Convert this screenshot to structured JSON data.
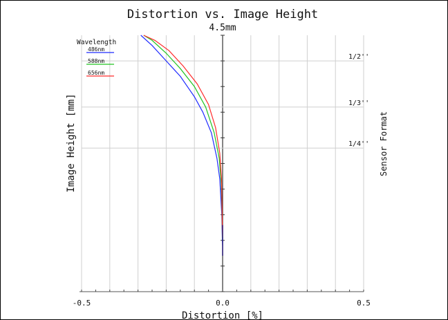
{
  "chart_data": {
    "type": "line",
    "title": "Distortion vs. Image Height",
    "subtitle": "4.5mm",
    "xlabel": "Distortion [%]",
    "ylabel": "Image Height [mm]",
    "right_label": "Sensor Format",
    "xlim": [
      -0.5,
      0.5
    ],
    "x_ticks": [
      "-0.5",
      "0.0",
      "0.5"
    ],
    "grid": true,
    "legend_title": "Wavelength",
    "legend_position": "top-left",
    "sensor_formats": [
      {
        "label": "1/2''",
        "y": 0.9
      },
      {
        "label": "1/3''",
        "y": 0.72
      },
      {
        "label": "1/4''",
        "y": 0.56
      }
    ],
    "series": [
      {
        "name": "486nm",
        "color": "#1f2bff",
        "points": [
          [
            0.0,
            0.18
          ],
          [
            -0.001,
            0.2
          ],
          [
            -0.003,
            0.3
          ],
          [
            -0.01,
            0.44
          ],
          [
            -0.02,
            0.52
          ],
          [
            -0.04,
            0.62
          ],
          [
            -0.07,
            0.7
          ],
          [
            -0.1,
            0.76
          ],
          [
            -0.15,
            0.84
          ],
          [
            -0.2,
            0.9
          ],
          [
            -0.25,
            0.96
          ],
          [
            -0.29,
            1.0
          ]
        ]
      },
      {
        "name": "588nm",
        "color": "#22c422",
        "points": [
          [
            0.0,
            0.2
          ],
          [
            -0.001,
            0.22
          ],
          [
            -0.002,
            0.3
          ],
          [
            -0.005,
            0.42
          ],
          [
            -0.012,
            0.52
          ],
          [
            -0.03,
            0.62
          ],
          [
            -0.06,
            0.72
          ],
          [
            -0.1,
            0.8
          ],
          [
            -0.15,
            0.87
          ],
          [
            -0.2,
            0.93
          ],
          [
            -0.25,
            0.98
          ],
          [
            -0.28,
            1.0
          ]
        ]
      },
      {
        "name": "656nm",
        "color": "#ff2a2a",
        "points": [
          [
            0.0,
            0.21
          ],
          [
            -0.001,
            0.24
          ],
          [
            -0.002,
            0.32
          ],
          [
            -0.004,
            0.44
          ],
          [
            -0.01,
            0.54
          ],
          [
            -0.025,
            0.64
          ],
          [
            -0.05,
            0.73
          ],
          [
            -0.09,
            0.81
          ],
          [
            -0.14,
            0.88
          ],
          [
            -0.19,
            0.94
          ],
          [
            -0.24,
            0.98
          ],
          [
            -0.28,
            1.0
          ]
        ]
      }
    ]
  }
}
